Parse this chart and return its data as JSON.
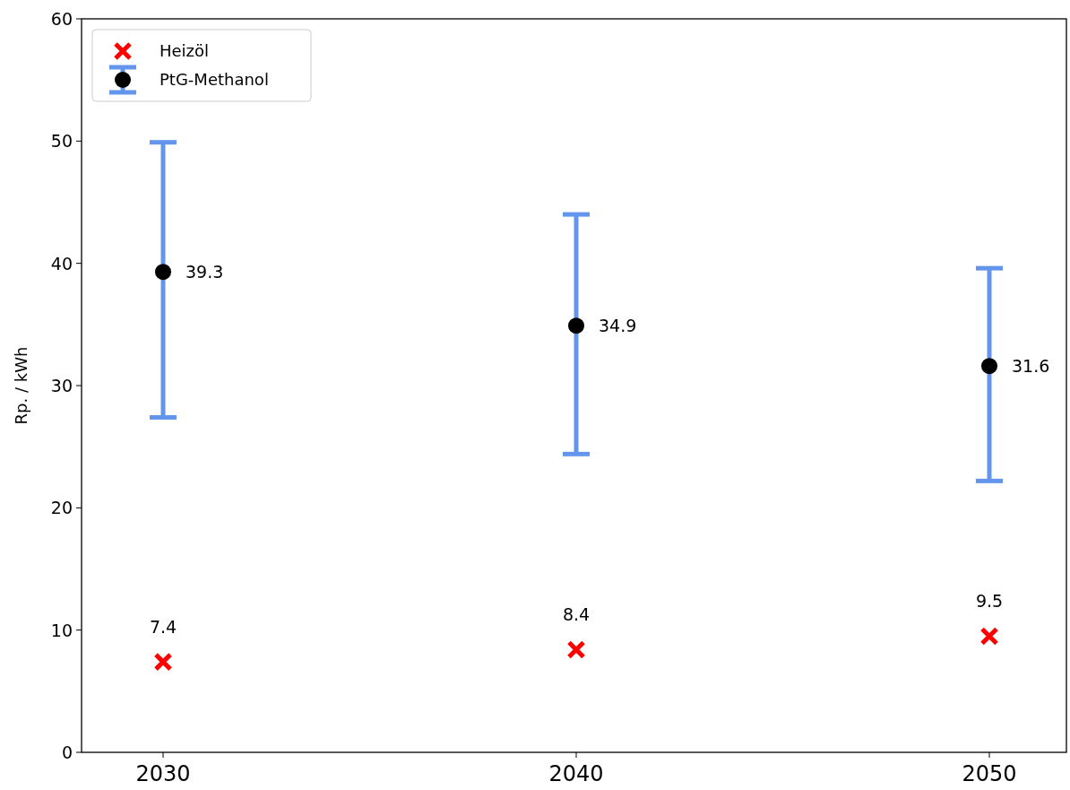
{
  "chart_data": {
    "type": "scatter",
    "ylabel": "Rp. / kWh",
    "categories": [
      "2030",
      "2040",
      "2050"
    ],
    "series": [
      {
        "name": "Heizöl",
        "color": "#ff0000",
        "marker": "cross",
        "values": [
          7.4,
          8.4,
          9.5
        ]
      },
      {
        "name": "PtG-Methanol",
        "color": "#000000",
        "marker": "circle",
        "values": [
          39.3,
          34.9,
          31.6
        ],
        "errors": [
          [
            27.4,
            49.9
          ],
          [
            24.4,
            44.0
          ],
          [
            22.2,
            39.6
          ]
        ]
      }
    ],
    "ylim": [
      0,
      60
    ],
    "yticks": [
      0,
      10,
      20,
      30,
      40,
      50,
      60
    ],
    "data_labels": true,
    "legend": "top left",
    "grid": false
  }
}
